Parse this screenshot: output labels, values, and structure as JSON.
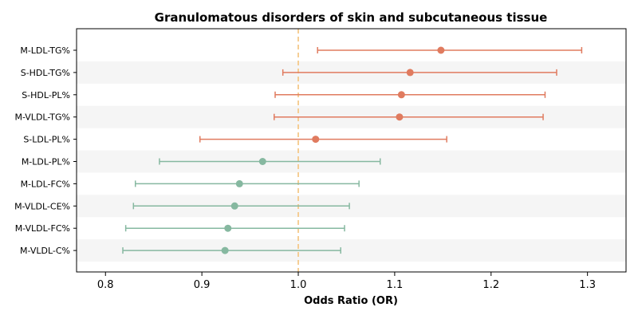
{
  "chart_data": {
    "type": "forest",
    "title": "Granulomatous disorders of skin and subcutaneous tissue",
    "xlabel": "Odds Ratio (OR)",
    "xlim": [
      0.77,
      1.34
    ],
    "xticks": [
      0.8,
      0.9,
      1.0,
      1.1,
      1.2,
      1.3
    ],
    "xtick_labels": [
      "0.8",
      "0.9",
      "1.0",
      "1.1",
      "1.2",
      "1.3"
    ],
    "reference_line": 1.0,
    "colors": {
      "above_one": "#e07b5f",
      "below_one": "#86b8a0",
      "reference_line": "#f5c98a",
      "stripe": "#f5f5f5"
    },
    "rows": [
      {
        "label": "M-LDL-TG%",
        "or": 1.148,
        "lower": 1.02,
        "upper": 1.294
      },
      {
        "label": "S-HDL-TG%",
        "or": 1.116,
        "lower": 0.984,
        "upper": 1.268
      },
      {
        "label": "S-HDL-PL%",
        "or": 1.107,
        "lower": 0.976,
        "upper": 1.256
      },
      {
        "label": "M-VLDL-TG%",
        "or": 1.105,
        "lower": 0.975,
        "upper": 1.254
      },
      {
        "label": "S-LDL-PL%",
        "or": 1.018,
        "lower": 0.898,
        "upper": 1.154
      },
      {
        "label": "M-LDL-PL%",
        "or": 0.963,
        "lower": 0.856,
        "upper": 1.085
      },
      {
        "label": "M-LDL-FC%",
        "or": 0.939,
        "lower": 0.831,
        "upper": 1.063
      },
      {
        "label": "M-VLDL-CE%",
        "or": 0.934,
        "lower": 0.829,
        "upper": 1.053
      },
      {
        "label": "M-VLDL-FC%",
        "or": 0.927,
        "lower": 0.821,
        "upper": 1.048
      },
      {
        "label": "M-VLDL-C%",
        "or": 0.924,
        "lower": 0.818,
        "upper": 1.044
      }
    ]
  }
}
